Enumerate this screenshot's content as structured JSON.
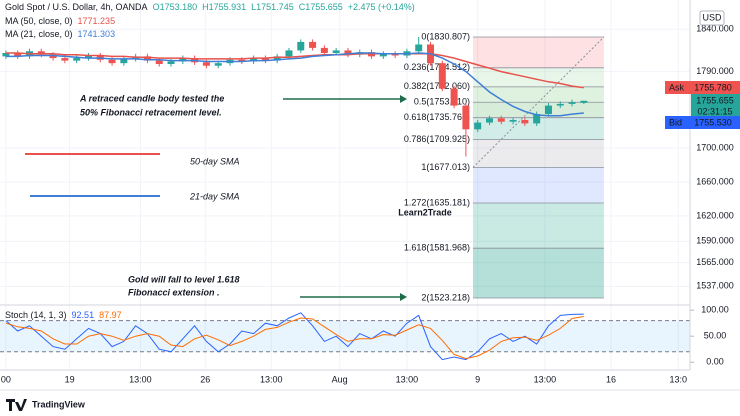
{
  "chart_data": {
    "type": "candlestick",
    "title": "Gold Spot / U.S. Dollar, 4h, OANDA",
    "ohlc_text": [
      "O1753.180",
      "H1755.931",
      "L1751.745",
      "C1755.655",
      "+2.475 (+0.14%)"
    ],
    "currency": "USD",
    "up_color": "#26a69a",
    "down_color": "#ef5350",
    "open": [
      1808,
      1812,
      1808,
      1814,
      1810,
      1806,
      1803,
      1806,
      1809,
      1804,
      1800,
      1805,
      1808,
      1803,
      1799,
      1802,
      1806,
      1801,
      1797,
      1800,
      1804,
      1802,
      1806,
      1803,
      1808,
      1815,
      1825,
      1818,
      1812,
      1815,
      1810,
      1813,
      1808,
      1811,
      1809,
      1814,
      1822,
      1800,
      1770,
      1750,
      1722,
      1730,
      1735,
      1731,
      1733,
      1729,
      1740,
      1750,
      1752,
      1753.18
    ],
    "high": [
      1815,
      1815,
      1817,
      1817,
      1813,
      1809,
      1809,
      1812,
      1812,
      1807,
      1808,
      1811,
      1811,
      1806,
      1805,
      1809,
      1809,
      1804,
      1803,
      1807,
      1807,
      1809,
      1809,
      1811,
      1818,
      1828,
      1828,
      1821,
      1818,
      1818,
      1816,
      1816,
      1814,
      1814,
      1817,
      1830.807,
      1825,
      1803,
      1773,
      1753,
      1733,
      1738,
      1738,
      1736,
      1736,
      1743,
      1753,
      1755,
      1757,
      1755.931
    ],
    "low": [
      1805,
      1805,
      1805,
      1807,
      1803,
      1800,
      1800,
      1803,
      1801,
      1797,
      1797,
      1802,
      1800,
      1796,
      1796,
      1799,
      1798,
      1794,
      1794,
      1797,
      1799,
      1799,
      1800,
      1800,
      1805,
      1812,
      1815,
      1809,
      1809,
      1807,
      1807,
      1805,
      1805,
      1806,
      1806,
      1811,
      1797,
      1767,
      1747,
      1690,
      1719,
      1727,
      1728,
      1728,
      1726,
      1726,
      1737,
      1747,
      1749,
      1751.745
    ],
    "close": [
      1812,
      1808,
      1814,
      1810,
      1806,
      1803,
      1806,
      1809,
      1804,
      1800,
      1805,
      1808,
      1803,
      1799,
      1802,
      1806,
      1801,
      1797,
      1800,
      1804,
      1802,
      1806,
      1803,
      1808,
      1815,
      1825,
      1818,
      1812,
      1815,
      1810,
      1813,
      1808,
      1811,
      1809,
      1814,
      1822,
      1800,
      1770,
      1750,
      1722,
      1730,
      1735,
      1731,
      1733,
      1729,
      1740,
      1750,
      1752,
      1754,
      1755.655
    ],
    "series": [
      {
        "name": "MA (50, close, 0)",
        "legend_value": "1771.235",
        "color": "#e8524a",
        "values": [
          1812,
          1812,
          1811,
          1811,
          1811,
          1810,
          1810,
          1809,
          1809,
          1808,
          1808,
          1807,
          1807,
          1806,
          1806,
          1806,
          1805,
          1805,
          1805,
          1805,
          1805,
          1806,
          1806,
          1807,
          1807,
          1808,
          1809,
          1810,
          1810,
          1810,
          1811,
          1811,
          1811,
          1811,
          1811,
          1811,
          1811,
          1809,
          1806,
          1802,
          1798,
          1794,
          1790,
          1787,
          1784,
          1781,
          1778,
          1776,
          1773,
          1771.235
        ]
      },
      {
        "name": "MA (21, close, 0)",
        "legend_value": "1741.303",
        "color": "#3f7fd6",
        "values": [
          1808,
          1808,
          1809,
          1809,
          1809,
          1808,
          1807,
          1806,
          1806,
          1805,
          1805,
          1805,
          1804,
          1804,
          1803,
          1803,
          1803,
          1802,
          1802,
          1802,
          1802,
          1803,
          1803,
          1804,
          1805,
          1806,
          1808,
          1809,
          1810,
          1811,
          1812,
          1812,
          1811,
          1811,
          1811,
          1812,
          1811,
          1806,
          1799,
          1790,
          1778,
          1766,
          1757,
          1749,
          1743,
          1739,
          1738,
          1738,
          1740,
          1741.303
        ]
      }
    ],
    "xlim": [
      -0.5,
      58
    ],
    "xticks": [
      {
        "value": 0,
        "label": "00"
      },
      {
        "value": 5.4,
        "label": "19"
      },
      {
        "value": 11.4,
        "label": "13:00"
      },
      {
        "value": 16.9,
        "label": "26"
      },
      {
        "value": 22.5,
        "label": "13:00"
      },
      {
        "value": 28.3,
        "label": "Aug"
      },
      {
        "value": 34,
        "label": "13:00"
      },
      {
        "value": 40,
        "label": "9"
      },
      {
        "value": 45.7,
        "label": "13:00"
      },
      {
        "value": 51.3,
        "label": "16"
      },
      {
        "value": 57,
        "label": "13:0"
      }
    ],
    "ylim": [
      1515,
      1865
    ],
    "yticks": [
      {
        "value": 1840,
        "label": "1840.000"
      },
      {
        "value": 1790,
        "label": "1790.000"
      },
      {
        "value": 1700,
        "label": "1700.000"
      },
      {
        "value": 1660,
        "label": "1660.000"
      },
      {
        "value": 1620,
        "label": "1620.000"
      },
      {
        "value": 1590,
        "label": "1590.000"
      },
      {
        "value": 1565,
        "label": "1565.000"
      },
      {
        "value": 1537,
        "label": "1537.000"
      }
    ],
    "price_tags": {
      "ask_label": "Ask",
      "ask": "1755.780",
      "last": "1755.655",
      "countdown": "02:31:15",
      "bid_label": "Bid",
      "bid": "1755.530"
    },
    "fibonacci": {
      "x_range": [
        39.6,
        50.7
      ],
      "levels": [
        {
          "value": 1830.807,
          "label": "0(1830.807)"
        },
        {
          "value": 1794.512,
          "label": "0.236(1794.512)"
        },
        {
          "value": 1772.06,
          "label": "0.382(1772.060)"
        },
        {
          "value": 1753.91,
          "label": "0.5(1753.910)"
        },
        {
          "value": 1735.762,
          "label": "0.618(1735.762)"
        },
        {
          "value": 1709.925,
          "label": "0.786(1709.925)"
        },
        {
          "value": 1677.013,
          "label": "1(1677.013)"
        },
        {
          "value": 1635.181,
          "label": "1.272(1635.181)"
        },
        {
          "value": 1581.968,
          "label": "1.618(1581.968)"
        },
        {
          "value": 1523.218,
          "label": "2(1523.218)"
        }
      ],
      "colors": [
        "rgba(242,54,69,0.15)",
        "rgba(129,199,132,0.18)",
        "rgba(76,175,80,0.18)",
        "rgba(76,175,80,0.22)",
        "rgba(8,153,129,0.18)",
        "rgba(120,123,134,0.15)",
        "rgba(41,98,255,0.15)",
        "rgba(8,153,129,0.22)",
        "rgba(8,153,129,0.3)"
      ]
    },
    "stoch": {
      "name": "Stoch (14, 1, 3)",
      "ylim": [
        -15,
        110
      ],
      "yticks": [
        {
          "value": 100,
          "label": "100.00"
        },
        {
          "value": 50,
          "label": "50.00"
        },
        {
          "value": 0,
          "label": "0.00"
        }
      ],
      "band": [
        20,
        80
      ],
      "series": [
        {
          "legend_value": "92.51",
          "color": "#2962ff",
          "values": [
            80,
            60,
            70,
            50,
            30,
            25,
            45,
            65,
            55,
            30,
            40,
            70,
            55,
            25,
            20,
            45,
            70,
            40,
            20,
            35,
            60,
            55,
            75,
            70,
            85,
            95,
            70,
            40,
            50,
            30,
            55,
            45,
            60,
            50,
            75,
            90,
            30,
            5,
            10,
            5,
            20,
            45,
            55,
            40,
            50,
            35,
            70,
            90,
            92,
            92.51
          ]
        },
        {
          "legend_value": "87.97",
          "color": "#ff6d00",
          "values": [
            75,
            68,
            65,
            60,
            45,
            35,
            35,
            50,
            55,
            50,
            42,
            50,
            55,
            50,
            33,
            30,
            45,
            52,
            43,
            32,
            40,
            50,
            63,
            67,
            77,
            85,
            83,
            68,
            53,
            40,
            45,
            45,
            53,
            52,
            62,
            72,
            65,
            42,
            15,
            7,
            12,
            23,
            40,
            47,
            48,
            42,
            52,
            65,
            84,
            87.97
          ]
        }
      ]
    },
    "annotations": {
      "retrace": [
        "A retraced candle body tested the",
        "50% Fibonacci retracement level."
      ],
      "sma50": "50-day SMA",
      "sma21": "21-day SMA",
      "target": [
        "Gold will fall to level 1.618",
        "Fibonacci extension ."
      ],
      "watermark": "Learn2Trade"
    },
    "footer": "TradingView"
  }
}
